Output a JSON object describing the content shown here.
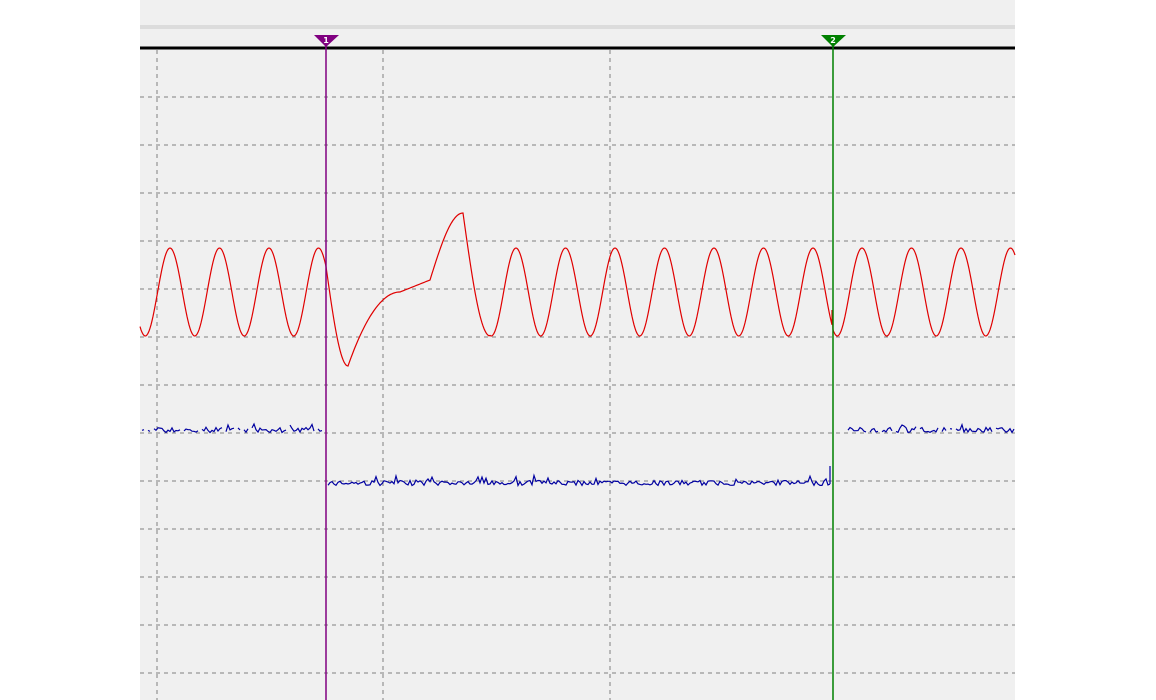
{
  "cursors": [
    {
      "label": "1",
      "color": "#800080"
    },
    {
      "label": "2",
      "color": "#008000"
    }
  ],
  "traces": [
    {
      "color": "#e00000"
    },
    {
      "color": "#0000a0"
    }
  ],
  "grid": {
    "visible": true,
    "style": "dashed",
    "color": "#808080"
  }
}
